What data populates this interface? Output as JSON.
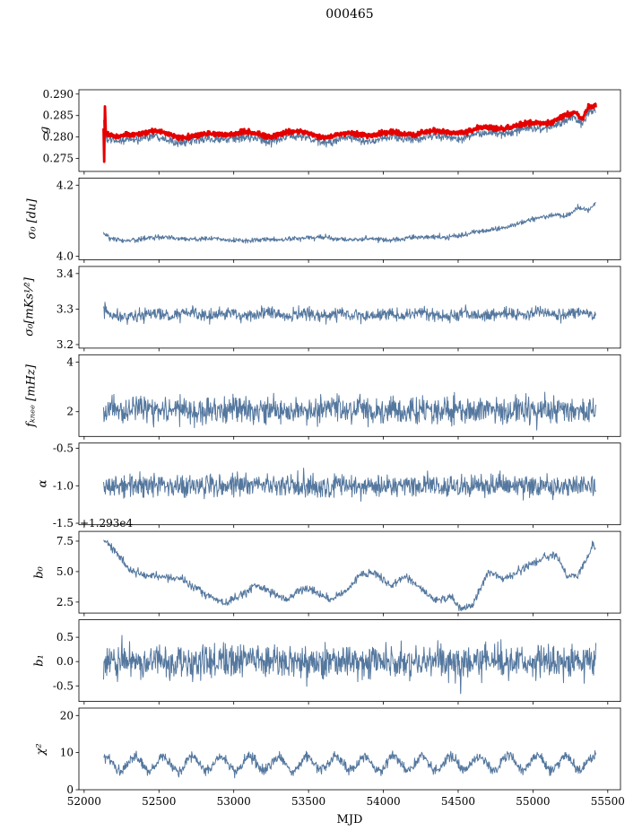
{
  "title": "000465",
  "xlabel": "MJD",
  "chart_data": {
    "type": "line",
    "x_range": [
      51965,
      55585
    ],
    "x_data_range": [
      52130,
      55420
    ],
    "x_ticks": [
      52000,
      52500,
      53000,
      53500,
      54000,
      54500,
      55000,
      55500
    ],
    "x_tick_labels": [
      "52000",
      "52500",
      "53000",
      "53500",
      "54000",
      "54500",
      "55000",
      "55500"
    ],
    "grid": false,
    "legend": "none",
    "panels": [
      {
        "name": "g",
        "ylabel": "g",
        "ylim": [
          0.272,
          0.291
        ],
        "yticks": [
          0.29,
          0.285,
          0.28,
          0.275
        ],
        "ytick_labels": [
          "0.290",
          "0.285",
          "0.280",
          "0.275"
        ],
        "series": [
          {
            "name": "g-pipeline-blue",
            "color": "#54779e",
            "width": 1,
            "noise": 0.0005,
            "n": 1200,
            "osc": {
              "amp": 0.0004,
              "period": 310,
              "phase": 0.5
            },
            "trend": [
              [
                52130,
                0.2832
              ],
              [
                52150,
                0.279
              ],
              [
                52210,
                0.2787
              ],
              [
                52300,
                0.2797
              ],
              [
                52450,
                0.28
              ],
              [
                52600,
                0.2792
              ],
              [
                52750,
                0.2789
              ],
              [
                52900,
                0.2796
              ],
              [
                53050,
                0.2799
              ],
              [
                53200,
                0.2791
              ],
              [
                53350,
                0.2799
              ],
              [
                53500,
                0.2797
              ],
              [
                53650,
                0.2789
              ],
              [
                53800,
                0.2796
              ],
              [
                53950,
                0.2794
              ],
              [
                54100,
                0.2796
              ],
              [
                54250,
                0.2799
              ],
              [
                54400,
                0.2799
              ],
              [
                54550,
                0.2802
              ],
              [
                54700,
                0.2807
              ],
              [
                54850,
                0.2814
              ],
              [
                55000,
                0.2817
              ],
              [
                55100,
                0.2824
              ],
              [
                55200,
                0.2837
              ],
              [
                55280,
                0.2841
              ],
              [
                55330,
                0.2827
              ],
              [
                55370,
                0.2857
              ],
              [
                55420,
                0.2867
              ]
            ]
          },
          {
            "name": "g-highlight-red",
            "color": "#e50000",
            "width": 2.8,
            "noise": 0.00028,
            "n": 1400,
            "osc": {
              "amp": 0.0004,
              "period": 310,
              "phase": 0.5
            },
            "trend": [
              [
                52130,
                0.2812
              ],
              [
                52134,
                0.2744
              ],
              [
                52139,
                0.2871
              ],
              [
                52146,
                0.2803
              ],
              [
                52210,
                0.2799
              ],
              [
                52300,
                0.2809
              ],
              [
                52450,
                0.2812
              ],
              [
                52600,
                0.2804
              ],
              [
                52750,
                0.2801
              ],
              [
                52900,
                0.2808
              ],
              [
                53050,
                0.2811
              ],
              [
                53200,
                0.2803
              ],
              [
                53350,
                0.2811
              ],
              [
                53500,
                0.2809
              ],
              [
                53650,
                0.2801
              ],
              [
                53800,
                0.2808
              ],
              [
                53950,
                0.2806
              ],
              [
                54100,
                0.2808
              ],
              [
                54250,
                0.2811
              ],
              [
                54400,
                0.2811
              ],
              [
                54550,
                0.2814
              ],
              [
                54700,
                0.2819
              ],
              [
                54850,
                0.2826
              ],
              [
                55000,
                0.2829
              ],
              [
                55100,
                0.2836
              ],
              [
                55200,
                0.2849
              ],
              [
                55280,
                0.2853
              ],
              [
                55330,
                0.2839
              ],
              [
                55370,
                0.2869
              ],
              [
                55420,
                0.2879
              ]
            ]
          }
        ]
      },
      {
        "name": "sigma0-du",
        "ylabel": "σ₀ [du]",
        "ylim": [
          3.99,
          4.22
        ],
        "yticks": [
          4.2,
          4.0
        ],
        "ytick_labels": [
          "4.2",
          "4.0"
        ],
        "series": [
          {
            "name": "sigma0-du",
            "color": "#54779e",
            "width": 1,
            "noise": 0.0035,
            "n": 1100,
            "osc": {
              "amp": 0.002,
              "period": 350,
              "phase": 1.2
            },
            "trend": [
              [
                52130,
                4.062
              ],
              [
                52170,
                4.047
              ],
              [
                52260,
                4.044
              ],
              [
                52400,
                4.05
              ],
              [
                52600,
                4.052
              ],
              [
                52800,
                4.048
              ],
              [
                53000,
                4.046
              ],
              [
                53200,
                4.044
              ],
              [
                53400,
                4.05
              ],
              [
                53600,
                4.052
              ],
              [
                53800,
                4.048
              ],
              [
                54000,
                4.047
              ],
              [
                54200,
                4.052
              ],
              [
                54400,
                4.055
              ],
              [
                54550,
                4.06
              ],
              [
                54700,
                4.075
              ],
              [
                54850,
                4.085
              ],
              [
                54950,
                4.095
              ],
              [
                55050,
                4.11
              ],
              [
                55150,
                4.118
              ],
              [
                55220,
                4.112
              ],
              [
                55300,
                4.135
              ],
              [
                55370,
                4.128
              ],
              [
                55420,
                4.152
              ]
            ]
          }
        ]
      },
      {
        "name": "sigma0-mks",
        "ylabel": "σ₀[mKs¹⁄²]",
        "ylim": [
          3.19,
          3.42
        ],
        "yticks": [
          3.4,
          3.3,
          3.2
        ],
        "ytick_labels": [
          "3.4",
          "3.3",
          "3.2"
        ],
        "series": [
          {
            "name": "sigma0-mks",
            "color": "#54779e",
            "width": 1,
            "noise": 0.009,
            "n": 1100,
            "osc": {
              "amp": 0.004,
              "period": 260,
              "phase": 0.3
            },
            "trend": [
              [
                52130,
                3.301
              ],
              [
                52165,
                3.279
              ],
              [
                52300,
                3.283
              ],
              [
                53000,
                3.285
              ],
              [
                54000,
                3.283
              ],
              [
                55000,
                3.287
              ],
              [
                55420,
                3.289
              ]
            ]
          }
        ]
      },
      {
        "name": "fknee",
        "ylabel": "fₖₙₑₑ [mHz]",
        "ylim": [
          1.0,
          4.3
        ],
        "yticks": [
          4,
          2
        ],
        "ytick_labels": [
          "4",
          "2"
        ],
        "series": [
          {
            "name": "fknee",
            "color": "#54779e",
            "width": 1,
            "noise": 0.27,
            "n": 1100,
            "osc": {
              "amp": 0.05,
              "period": 210,
              "phase": 0
            },
            "trend": [
              [
                52130,
                2.05
              ],
              [
                55420,
                2.05
              ]
            ]
          }
        ]
      },
      {
        "name": "alpha",
        "ylabel": "α",
        "ylim": [
          -1.52,
          -0.43
        ],
        "yticks": [
          -0.5,
          -1.0,
          -1.5
        ],
        "ytick_labels": [
          "-0.5",
          "-1.0",
          "-1.5"
        ],
        "series": [
          {
            "name": "alpha",
            "color": "#54779e",
            "width": 1,
            "noise": 0.075,
            "n": 1100,
            "trend": [
              [
                52130,
                -1.0
              ],
              [
                55420,
                -1.0
              ]
            ]
          }
        ]
      },
      {
        "name": "b0",
        "ylabel": "b₀",
        "offset_text": "+1.293e4",
        "ylim": [
          1.6,
          8.3
        ],
        "yticks": [
          7.5,
          5.0,
          2.5
        ],
        "ytick_labels": [
          "7.5",
          "5.0",
          "2.5"
        ],
        "series": [
          {
            "name": "b0",
            "color": "#54779e",
            "width": 1,
            "noise": 0.16,
            "n": 1000,
            "trend": [
              [
                52130,
                7.6
              ],
              [
                52200,
                6.8
              ],
              [
                52300,
                5.2
              ],
              [
                52400,
                4.7
              ],
              [
                52500,
                4.6
              ],
              [
                52650,
                4.4
              ],
              [
                52800,
                3.2
              ],
              [
                52950,
                2.4
              ],
              [
                53050,
                3.1
              ],
              [
                53150,
                3.9
              ],
              [
                53250,
                3.3
              ],
              [
                53350,
                2.7
              ],
              [
                53450,
                3.6
              ],
              [
                53550,
                3.3
              ],
              [
                53650,
                2.7
              ],
              [
                53750,
                3.4
              ],
              [
                53850,
                4.8
              ],
              [
                53950,
                4.9
              ],
              [
                54050,
                3.8
              ],
              [
                54150,
                4.7
              ],
              [
                54250,
                3.6
              ],
              [
                54350,
                2.6
              ],
              [
                54450,
                2.9
              ],
              [
                54520,
                1.9
              ],
              [
                54600,
                2.3
              ],
              [
                54700,
                4.9
              ],
              [
                54800,
                4.4
              ],
              [
                54900,
                5.0
              ],
              [
                55000,
                5.7
              ],
              [
                55080,
                6.2
              ],
              [
                55160,
                6.3
              ],
              [
                55230,
                4.5
              ],
              [
                55300,
                4.7
              ],
              [
                55360,
                6.0
              ],
              [
                55400,
                7.3
              ],
              [
                55420,
                6.8
              ]
            ]
          }
        ]
      },
      {
        "name": "b1",
        "ylabel": "b₁",
        "ylim": [
          -0.82,
          0.86
        ],
        "yticks": [
          0.5,
          0.0,
          -0.5
        ],
        "ytick_labels": [
          "0.5",
          "0.0",
          "-0.5"
        ],
        "series": [
          {
            "name": "b1",
            "color": "#54779e",
            "width": 1,
            "noise": 0.17,
            "n": 1100,
            "trend": [
              [
                52130,
                0.0
              ],
              [
                54510,
                0.0
              ],
              [
                54516,
                -0.72
              ],
              [
                54522,
                0.0
              ],
              [
                55420,
                0.0
              ]
            ]
          }
        ]
      },
      {
        "name": "chi2",
        "ylabel": "χ²",
        "ylim": [
          0,
          22
        ],
        "yticks": [
          20,
          10,
          0
        ],
        "ytick_labels": [
          "20",
          "10",
          "0"
        ],
        "series": [
          {
            "name": "chi2",
            "color": "#54779e",
            "width": 1,
            "noise": 0.65,
            "n": 1100,
            "osc": {
              "amp": 1.9,
              "period": 192,
              "phase": 1.0
            },
            "trend": [
              [
                52130,
                6.9
              ],
              [
                55420,
                7.3
              ]
            ]
          }
        ]
      }
    ]
  }
}
